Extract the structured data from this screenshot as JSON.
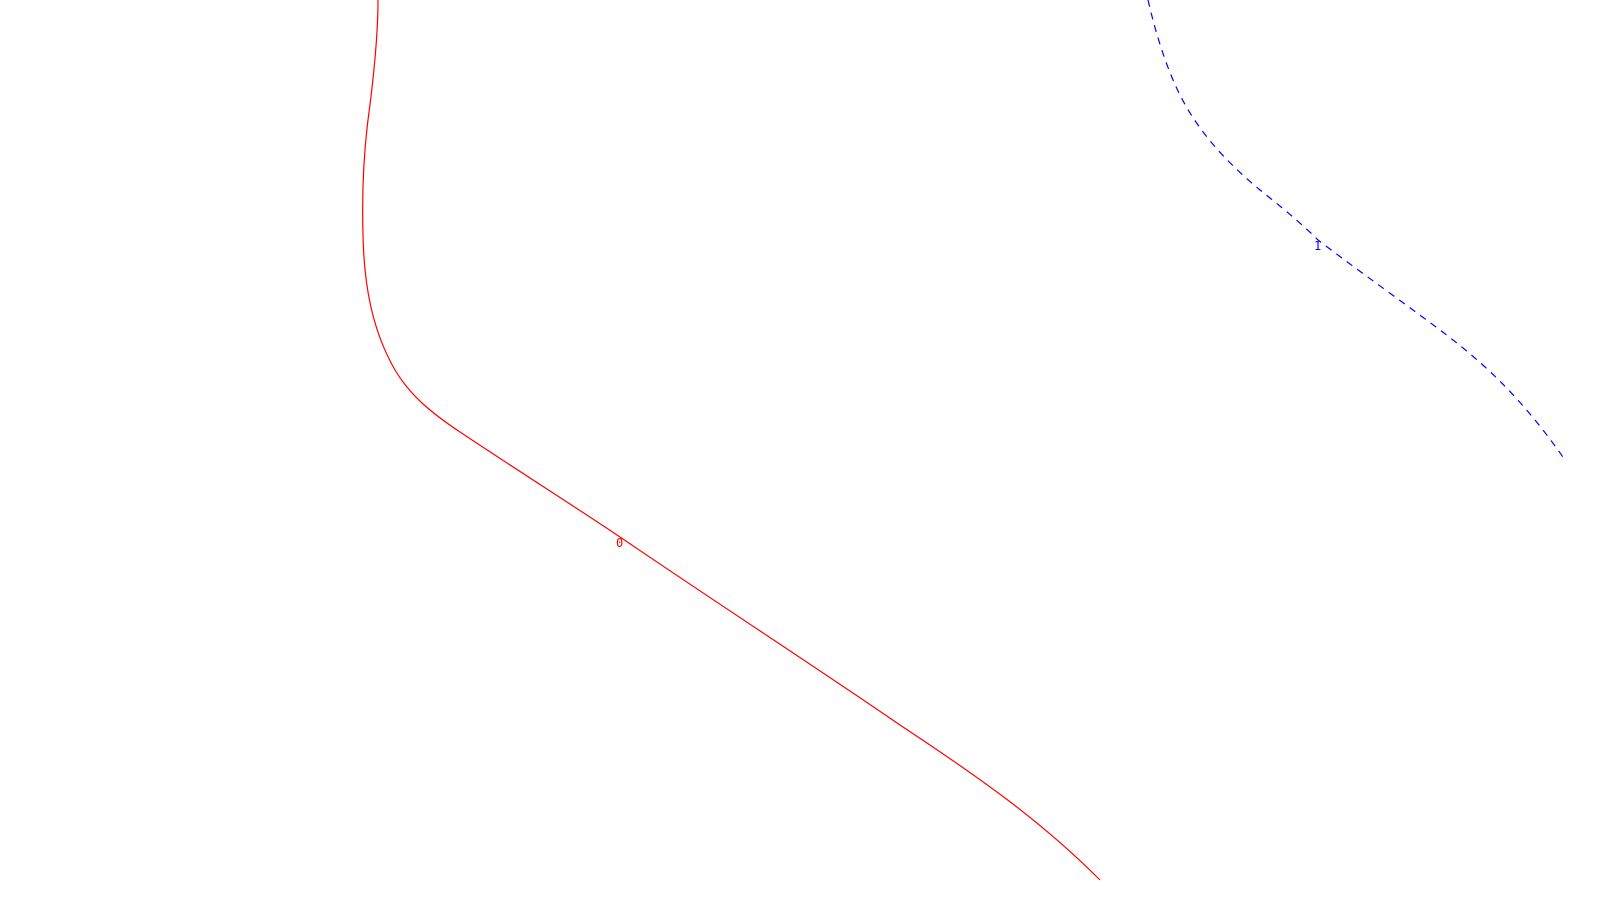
{
  "curves": [
    {
      "id": "curve-0",
      "label": "0",
      "color": "#ff0000",
      "line_style": "solid"
    },
    {
      "id": "curve-1",
      "label": "1",
      "color": "#0000ff",
      "line_style": "dashed"
    }
  ]
}
